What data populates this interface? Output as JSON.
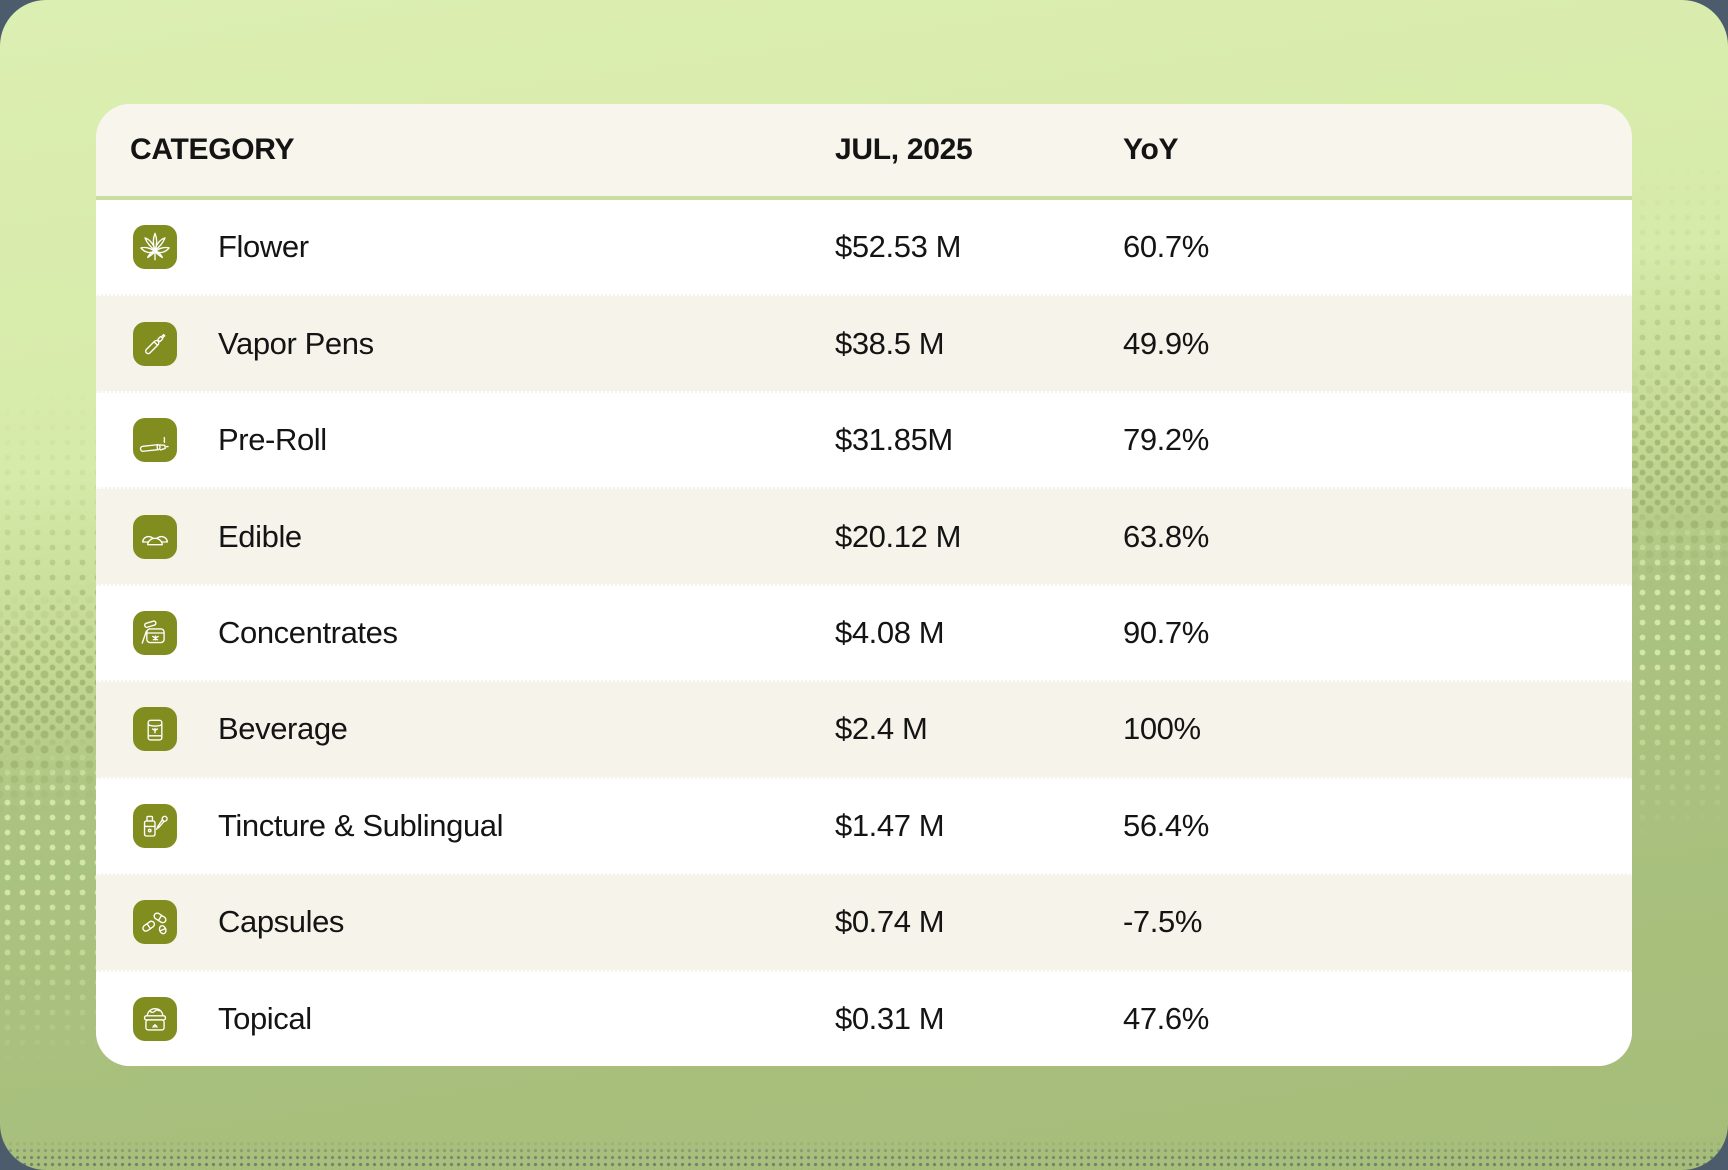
{
  "table": {
    "columns": [
      {
        "key": "category",
        "label": "CATEGORY"
      },
      {
        "key": "value",
        "label": "JUL, 2025"
      },
      {
        "key": "yoy",
        "label": "YoY"
      }
    ],
    "rows": [
      {
        "icon": "flower-icon",
        "category": "Flower",
        "value": "$52.53 M",
        "yoy": "60.7%"
      },
      {
        "icon": "vapor-pen-icon",
        "category": "Vapor Pens",
        "value": "$38.5 M",
        "yoy": "49.9%"
      },
      {
        "icon": "pre-roll-icon",
        "category": "Pre-Roll",
        "value": "$31.85M",
        "yoy": "79.2%"
      },
      {
        "icon": "edible-icon",
        "category": "Edible",
        "value": "$20.12 M",
        "yoy": "63.8%"
      },
      {
        "icon": "concentrates-icon",
        "category": "Concentrates",
        "value": "$4.08 M",
        "yoy": "90.7%"
      },
      {
        "icon": "beverage-icon",
        "category": "Beverage",
        "value": "$2.4 M",
        "yoy": "100%"
      },
      {
        "icon": "tincture-icon",
        "category": "Tincture & Sublingual",
        "value": "$1.47 M",
        "yoy": "56.4%"
      },
      {
        "icon": "capsules-icon",
        "category": "Capsules",
        "value": "$0.74 M",
        "yoy": "-7.5%"
      },
      {
        "icon": "topical-icon",
        "category": "Topical",
        "value": "$0.31 M",
        "yoy": "47.6%"
      }
    ]
  },
  "chart_data": {
    "type": "table",
    "title": "",
    "columns": [
      "CATEGORY",
      "JUL, 2025",
      "YoY"
    ],
    "rows": [
      [
        "Flower",
        "$52.53 M",
        "60.7%"
      ],
      [
        "Vapor Pens",
        "$38.5 M",
        "49.9%"
      ],
      [
        "Pre-Roll",
        "$31.85M",
        "79.2%"
      ],
      [
        "Edible",
        "$20.12 M",
        "63.8%"
      ],
      [
        "Concentrates",
        "$4.08 M",
        "90.7%"
      ],
      [
        "Beverage",
        "$2.4 M",
        "100%"
      ],
      [
        "Tincture & Sublingual",
        "$1.47 M",
        "56.4%"
      ],
      [
        "Capsules",
        "$0.74 M",
        "-7.5%"
      ],
      [
        "Topical",
        "$0.31 M",
        "47.6%"
      ]
    ],
    "numeric": {
      "categories": [
        "Flower",
        "Vapor Pens",
        "Pre-Roll",
        "Edible",
        "Concentrates",
        "Beverage",
        "Tincture & Sublingual",
        "Capsules",
        "Topical"
      ],
      "sales_usd_millions": [
        52.53,
        38.5,
        31.85,
        20.12,
        4.08,
        2.4,
        1.47,
        0.74,
        0.31
      ],
      "yoy_percent": [
        60.7,
        49.9,
        79.2,
        63.8,
        90.7,
        100,
        56.4,
        -7.5,
        47.6
      ]
    }
  },
  "colors": {
    "outer_background": "#4D5C6C",
    "panel_gradient_top": "#DCEFB2",
    "panel_gradient_bottom": "#A6BD7A",
    "card_background": "#FFFFFF",
    "header_background": "#F7F5EC",
    "alt_row_background": "#F5F3EA",
    "header_divider": "#CADF9D",
    "icon_chip": "#828D20",
    "text": "#141414"
  }
}
